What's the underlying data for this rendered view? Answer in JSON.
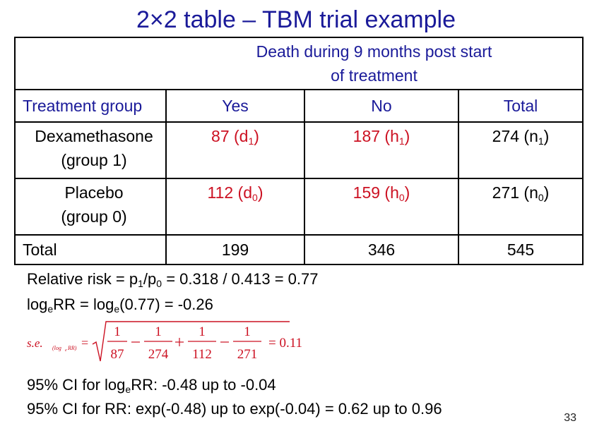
{
  "title": "2×2 table – TBM trial example",
  "table": {
    "caption_line1": "Death during 9 months post start",
    "caption_line2": "of treatment",
    "headers": {
      "group": "Treatment group",
      "yes": "Yes",
      "no": "No",
      "total": "Total"
    },
    "rows": [
      {
        "name_line1": "Dexamethasone",
        "name_line2": "(group 1)",
        "yes": "87 (d",
        "yes_sub": "1",
        "no": "187 (h",
        "no_sub": "1",
        "total": "274 (n",
        "total_sub": "1",
        "close": ")"
      },
      {
        "name_line1": "Placebo",
        "name_line2": "(group 0)",
        "yes": "112 (d",
        "yes_sub": "0",
        "no": "159 (h",
        "no_sub": "0",
        "total": "271 (n",
        "total_sub": "0",
        "close": ")"
      }
    ],
    "total_row": {
      "label": "Total",
      "yes": "199",
      "no": "346",
      "total": "545"
    }
  },
  "notes": {
    "rr_prefix": "Relative risk = p",
    "rr_sub1": "1",
    "rr_slash": "/p",
    "rr_sub0": "0",
    "rr_rest": " = 0.318 / 0.413 = 0.77",
    "log_a": "log",
    "log_sub": "e",
    "log_b": "RR = log",
    "log_sub2": "e",
    "log_c": "(0.77) = -0.26",
    "se_label": "s.e.",
    "se_sub": "(log",
    "se_sub_e": "e",
    "se_sub_end": " RR)",
    "se_eq": "=",
    "frac_num": "1",
    "d1": "87",
    "h1": "274",
    "d0": "112",
    "h0": "271",
    "se_result": "= 0.11",
    "ci_log_a": "95% CI for log",
    "ci_log_sub": "e",
    "ci_log_b": "RR: -0.48 up to -0.04",
    "ci_rr": "95% CI for RR:  exp(-0.48) up to exp(-0.04) = 0.62 up to 0.96"
  },
  "page_number": "33"
}
